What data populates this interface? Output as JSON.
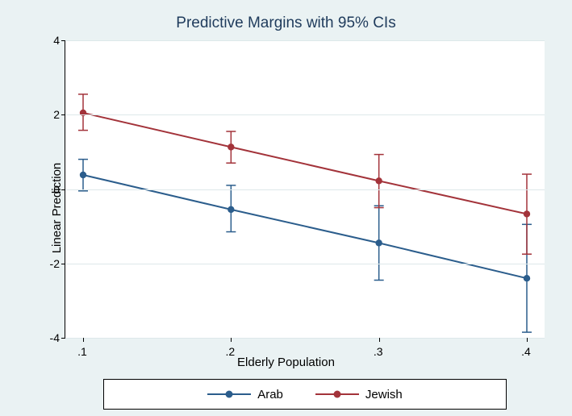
{
  "title": "Predictive Margins with 95% CIs",
  "xlabel": "Elderly Population",
  "ylabel": "Linear Prediction",
  "background_color": "#eaf2f3",
  "plot_background": "#ffffff",
  "grid_color": "#dde8ea",
  "axis_color": "#000000",
  "text_color": "#000000",
  "title_color": "#1f3b5c",
  "title_fontsize": 19,
  "label_fontsize": 15,
  "tick_fontsize": 14,
  "xlim": [
    0.1,
    0.4
  ],
  "ylim": [
    -4,
    4
  ],
  "xticks": [
    0.1,
    0.2,
    0.3,
    0.4
  ],
  "xtick_labels": [
    ".1",
    ".2",
    ".3",
    ".4"
  ],
  "yticks": [
    -4,
    -2,
    0,
    2,
    4
  ],
  "ytick_labels": [
    "-4",
    "-2",
    "0",
    "2",
    "4"
  ],
  "marker_radius": 4.2,
  "line_width": 2,
  "cap_halfwidth": 6,
  "series": [
    {
      "name": "Arab",
      "color": "#2b5d8c",
      "points": [
        {
          "x": 0.1,
          "y": 0.38,
          "lo": -0.05,
          "hi": 0.8
        },
        {
          "x": 0.2,
          "y": -0.55,
          "lo": -1.15,
          "hi": 0.1
        },
        {
          "x": 0.3,
          "y": -1.45,
          "lo": -2.45,
          "hi": -0.45
        },
        {
          "x": 0.4,
          "y": -2.4,
          "lo": -3.85,
          "hi": -0.95
        }
      ]
    },
    {
      "name": "Jewish",
      "color": "#a3333a",
      "points": [
        {
          "x": 0.1,
          "y": 2.05,
          "lo": 1.58,
          "hi": 2.55
        },
        {
          "x": 0.2,
          "y": 1.13,
          "lo": 0.7,
          "hi": 1.55
        },
        {
          "x": 0.3,
          "y": 0.22,
          "lo": -0.5,
          "hi": 0.93
        },
        {
          "x": 0.4,
          "y": -0.67,
          "lo": -1.75,
          "hi": 0.4
        }
      ]
    }
  ],
  "legend": {
    "items": [
      {
        "label": "Arab",
        "color": "#2b5d8c"
      },
      {
        "label": "Jewish",
        "color": "#a3333a"
      }
    ]
  }
}
